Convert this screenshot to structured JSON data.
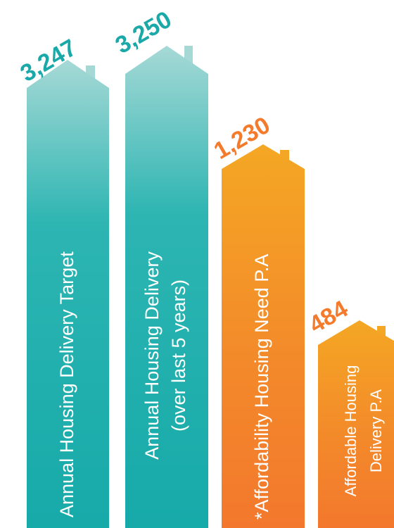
{
  "houses": [
    {
      "value": "3,247",
      "label": [
        "Annual Housing Delivery Target"
      ]
    },
    {
      "value": "3,250",
      "label": [
        "Annual Housing Delivery",
        "(over last 5 years)"
      ]
    },
    {
      "value": "1,230",
      "label": [
        "*Affordability Housing Need P.A"
      ]
    },
    {
      "value": "484",
      "label": [
        "Affordable Housing",
        "Delivery P.A"
      ]
    }
  ]
}
